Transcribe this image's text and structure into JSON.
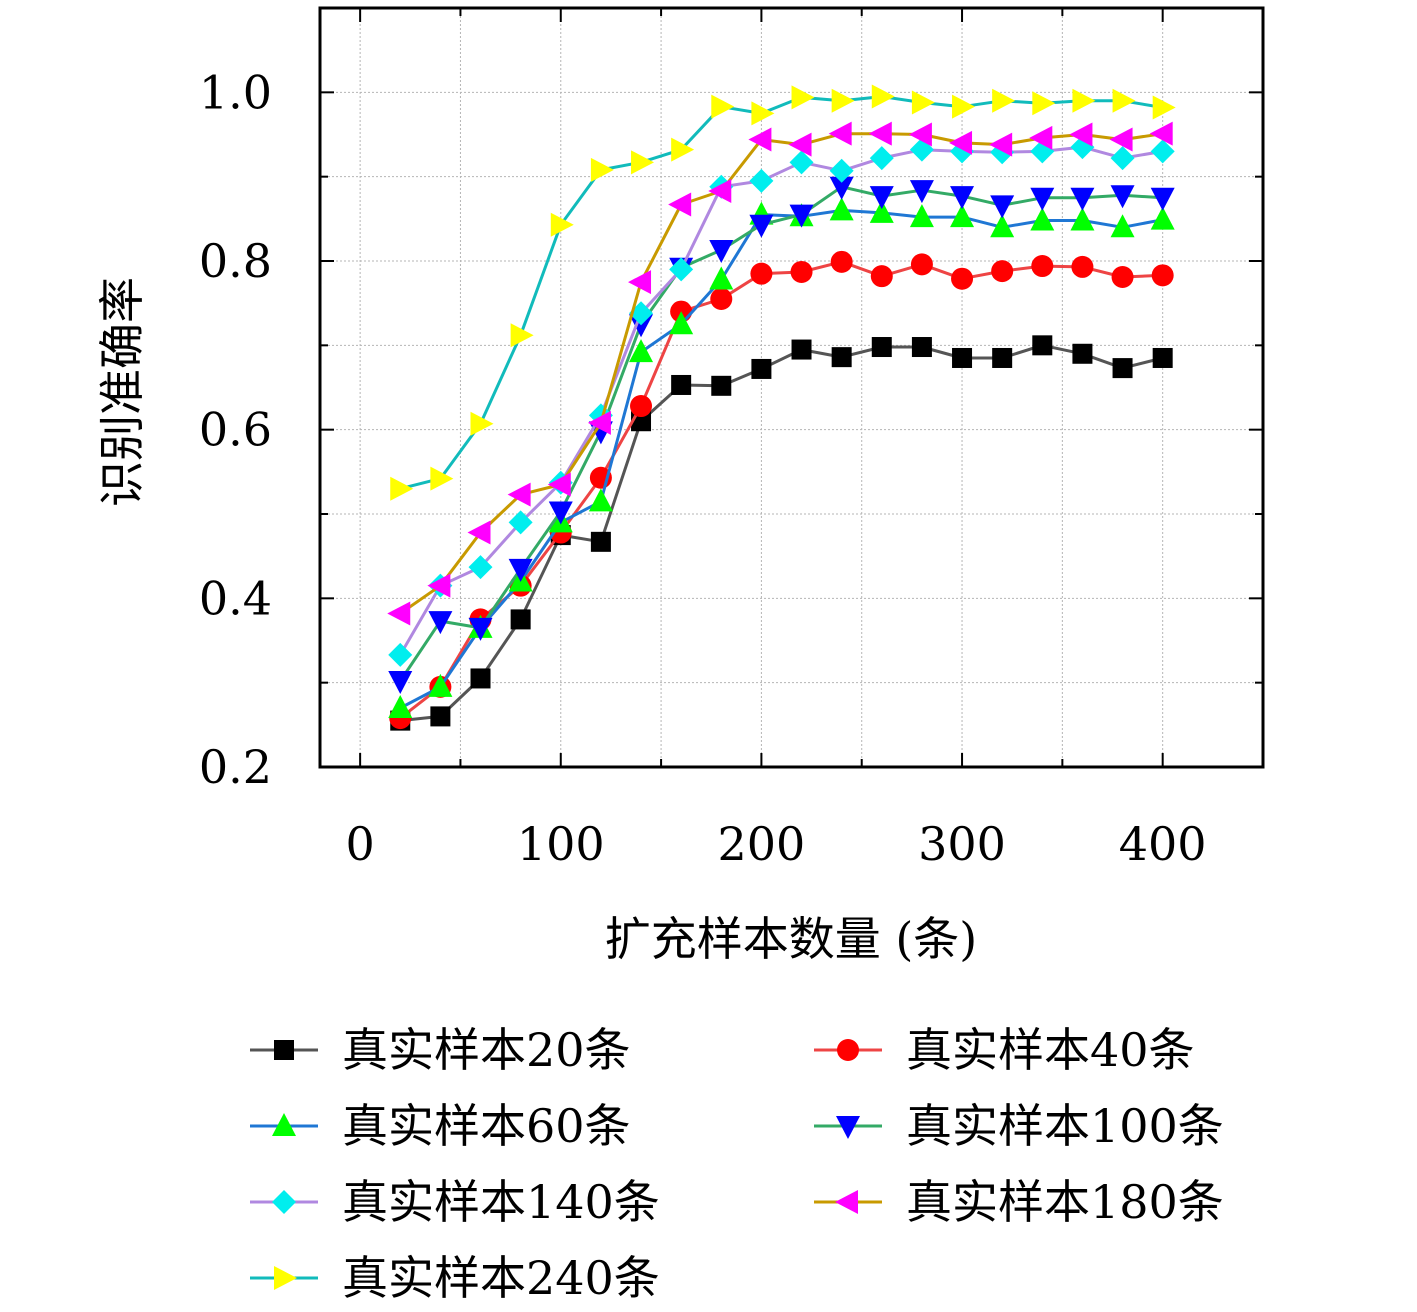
{
  "chart_data": {
    "type": "line",
    "title": "",
    "xlabel": "扩充样本数量 (条)",
    "ylabel": "识别准确率",
    "xlim": [
      -20,
      450
    ],
    "ylim": [
      0.2,
      1.1
    ],
    "xticks": [
      0,
      100,
      200,
      300,
      400
    ],
    "yticks": [
      0.2,
      0.4,
      0.6,
      0.8,
      1.0
    ],
    "xtick_labels": [
      "0",
      "100",
      "200",
      "300",
      "400"
    ],
    "ytick_labels": [
      "0.2",
      "0.4",
      "0.6",
      "0.8",
      "1.0"
    ],
    "grid": true,
    "legend_position": "bottom",
    "x": [
      20,
      40,
      60,
      80,
      100,
      120,
      140,
      160,
      180,
      200,
      220,
      240,
      260,
      280,
      300,
      320,
      340,
      360,
      380,
      400
    ],
    "series": [
      {
        "name": "真实样本20条",
        "color": "#555555",
        "marker_color": "#000000",
        "marker": "square",
        "values": [
          0.255,
          0.26,
          0.305,
          0.375,
          0.475,
          0.467,
          0.61,
          0.653,
          0.652,
          0.672,
          0.695,
          0.686,
          0.698,
          0.698,
          0.685,
          0.685,
          0.7,
          0.69,
          0.673,
          0.685
        ]
      },
      {
        "name": "真实样本40条",
        "color": "#ee4444",
        "marker_color": "#ff0000",
        "marker": "circle",
        "values": [
          0.258,
          0.295,
          0.375,
          0.415,
          0.478,
          0.543,
          0.628,
          0.74,
          0.755,
          0.785,
          0.787,
          0.799,
          0.782,
          0.796,
          0.779,
          0.788,
          0.794,
          0.793,
          0.781,
          0.783
        ]
      },
      {
        "name": "真实样本60条",
        "color": "#1f77d4",
        "marker_color": "#00ff00",
        "marker": "triangle-up",
        "values": [
          0.27,
          0.295,
          0.365,
          0.42,
          0.49,
          0.515,
          0.692,
          0.725,
          0.778,
          0.855,
          0.853,
          0.86,
          0.857,
          0.852,
          0.852,
          0.84,
          0.848,
          0.848,
          0.84,
          0.849
        ]
      },
      {
        "name": "真实样本100条",
        "color": "#33aa66",
        "marker_color": "#0000ff",
        "marker": "triangle-down",
        "values": [
          0.302,
          0.373,
          0.365,
          0.435,
          0.503,
          0.598,
          0.725,
          0.792,
          0.813,
          0.843,
          0.855,
          0.888,
          0.877,
          0.884,
          0.877,
          0.866,
          0.875,
          0.875,
          0.878,
          0.875
        ]
      },
      {
        "name": "真实样本140条",
        "color": "#b088e0",
        "marker_color": "#00eeee",
        "marker": "diamond",
        "values": [
          0.333,
          0.415,
          0.437,
          0.49,
          0.537,
          0.617,
          0.738,
          0.79,
          0.888,
          0.895,
          0.917,
          0.907,
          0.922,
          0.932,
          0.93,
          0.929,
          0.93,
          0.935,
          0.922,
          0.93
        ]
      },
      {
        "name": "真实样本180条",
        "color": "#c89a00",
        "marker_color": "#ff00ff",
        "marker": "triangle-left",
        "values": [
          0.382,
          0.415,
          0.478,
          0.523,
          0.535,
          0.608,
          0.775,
          0.867,
          0.883,
          0.944,
          0.938,
          0.951,
          0.951,
          0.95,
          0.94,
          0.938,
          0.946,
          0.95,
          0.944,
          0.951
        ]
      },
      {
        "name": "真实样本240条",
        "color": "#11bbbb",
        "marker_color": "#ffff00",
        "marker": "triangle-right",
        "values": [
          0.53,
          0.542,
          0.607,
          0.712,
          0.843,
          0.908,
          0.917,
          0.932,
          0.983,
          0.975,
          0.994,
          0.99,
          0.995,
          0.988,
          0.983,
          0.99,
          0.987,
          0.99,
          0.99,
          0.982
        ]
      }
    ]
  }
}
